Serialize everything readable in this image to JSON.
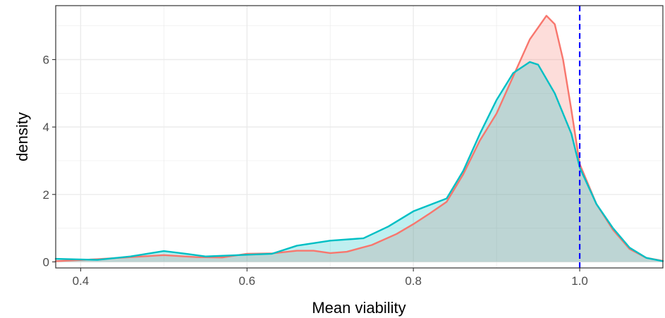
{
  "chart_data": {
    "type": "area",
    "title": "",
    "xlabel": "Mean viability",
    "ylabel": "density",
    "xlim": [
      0.37,
      1.1
    ],
    "ylim": [
      -0.18,
      7.6
    ],
    "x_ticks": [
      0.4,
      0.6,
      0.8,
      1.0
    ],
    "x_tick_labels": [
      "0.4",
      "0.6",
      "0.8",
      "1.0"
    ],
    "y_ticks": [
      0,
      2,
      4,
      6
    ],
    "y_tick_labels": [
      "0",
      "2",
      "4",
      "6"
    ],
    "grid": true,
    "legend": "none",
    "reference_line": {
      "x": 1.0,
      "color": "#0000ff",
      "style": "dashed"
    },
    "series": [
      {
        "color": "#f8766d",
        "fill": "#f8766d",
        "fill_opacity": 0.25,
        "points": [
          [
            0.37,
            0.02
          ],
          [
            0.42,
            0.08
          ],
          [
            0.46,
            0.14
          ],
          [
            0.5,
            0.2
          ],
          [
            0.54,
            0.14
          ],
          [
            0.57,
            0.13
          ],
          [
            0.6,
            0.24
          ],
          [
            0.63,
            0.25
          ],
          [
            0.66,
            0.33
          ],
          [
            0.68,
            0.33
          ],
          [
            0.7,
            0.26
          ],
          [
            0.72,
            0.3
          ],
          [
            0.75,
            0.5
          ],
          [
            0.78,
            0.83
          ],
          [
            0.8,
            1.12
          ],
          [
            0.82,
            1.44
          ],
          [
            0.84,
            1.78
          ],
          [
            0.86,
            2.6
          ],
          [
            0.88,
            3.6
          ],
          [
            0.9,
            4.4
          ],
          [
            0.92,
            5.5
          ],
          [
            0.94,
            6.6
          ],
          [
            0.96,
            7.3
          ],
          [
            0.97,
            7.05
          ],
          [
            0.98,
            6.0
          ],
          [
            0.99,
            4.5
          ],
          [
            1.0,
            2.9
          ],
          [
            1.02,
            1.72
          ],
          [
            1.04,
            0.95
          ],
          [
            1.06,
            0.38
          ],
          [
            1.08,
            0.12
          ],
          [
            1.1,
            0.03
          ]
        ]
      },
      {
        "color": "#00bfc4",
        "fill": "#00bfc4",
        "fill_opacity": 0.25,
        "points": [
          [
            0.37,
            0.09
          ],
          [
            0.42,
            0.06
          ],
          [
            0.46,
            0.16
          ],
          [
            0.5,
            0.32
          ],
          [
            0.53,
            0.23
          ],
          [
            0.55,
            0.16
          ],
          [
            0.6,
            0.21
          ],
          [
            0.63,
            0.24
          ],
          [
            0.66,
            0.48
          ],
          [
            0.7,
            0.63
          ],
          [
            0.74,
            0.7
          ],
          [
            0.77,
            1.05
          ],
          [
            0.8,
            1.5
          ],
          [
            0.84,
            1.88
          ],
          [
            0.86,
            2.7
          ],
          [
            0.88,
            3.8
          ],
          [
            0.9,
            4.8
          ],
          [
            0.92,
            5.6
          ],
          [
            0.94,
            5.93
          ],
          [
            0.95,
            5.85
          ],
          [
            0.97,
            5.0
          ],
          [
            0.99,
            3.8
          ],
          [
            1.0,
            2.8
          ],
          [
            1.02,
            1.72
          ],
          [
            1.04,
            1.0
          ],
          [
            1.06,
            0.42
          ],
          [
            1.08,
            0.12
          ],
          [
            1.1,
            0.02
          ]
        ]
      }
    ]
  }
}
